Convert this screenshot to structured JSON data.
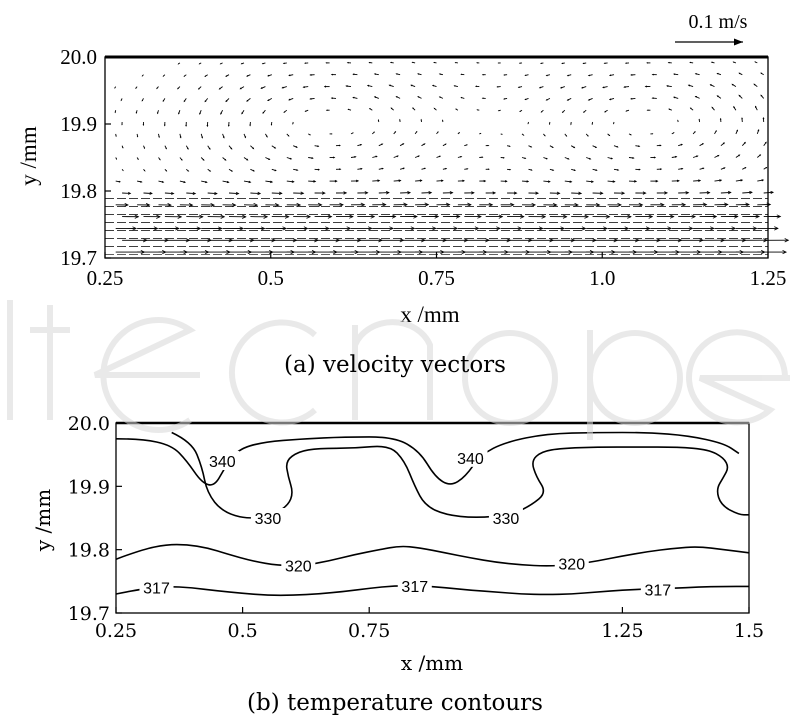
{
  "chart_data": [
    {
      "type": "vector",
      "caption": "(a) velocity vectors",
      "xlabel": "x /mm",
      "ylabel": "y /mm",
      "xlim": [
        0.25,
        1.25
      ],
      "ylim": [
        19.7,
        20.0
      ],
      "xticks": [
        "0.25",
        "0.5",
        "0.75",
        "1.0",
        "1.25"
      ],
      "yticks": [
        "19.7",
        "19.8",
        "19.9",
        "20.0"
      ],
      "reference_vector": {
        "label": "0.1 m/s",
        "magnitude": 0.1
      },
      "vortex_centers": [
        {
          "x": 0.58,
          "y": 19.9
        },
        {
          "x": 1.08,
          "y": 19.9
        }
      ],
      "near_wall_flow": "predominantly +x below y = 19.8"
    },
    {
      "type": "contour",
      "caption": "(b) temperature contours",
      "xlabel": "x /mm",
      "ylabel": "y /mm",
      "xlim": [
        0.25,
        1.5
      ],
      "ylim": [
        19.7,
        20.0
      ],
      "xticks": [
        "0.25",
        "0.5",
        "0.75",
        "1.25",
        "1.5"
      ],
      "yticks": [
        "19.7",
        "19.8",
        "19.9",
        "20.0"
      ],
      "contours": [
        {
          "level": "340",
          "points": [
            [
              0.25,
              19.975
            ],
            [
              0.3,
              19.975
            ],
            [
              0.36,
              19.965
            ],
            [
              0.39,
              19.94
            ],
            [
              0.42,
              19.905
            ],
            [
              0.445,
              19.9
            ],
            [
              0.465,
              19.93
            ],
            [
              0.49,
              19.958
            ],
            [
              0.54,
              19.97
            ],
            [
              0.62,
              19.975
            ],
            [
              0.7,
              19.978
            ],
            [
              0.8,
              19.978
            ],
            [
              0.85,
              19.955
            ],
            [
              0.88,
              19.915
            ],
            [
              0.91,
              19.9
            ],
            [
              0.94,
              19.915
            ],
            [
              0.97,
              19.95
            ],
            [
              1.02,
              19.97
            ],
            [
              1.1,
              19.983
            ],
            [
              1.2,
              19.985
            ],
            [
              1.3,
              19.985
            ],
            [
              1.38,
              19.98
            ],
            [
              1.45,
              19.968
            ],
            [
              1.48,
              19.952
            ]
          ],
          "labels": [
            {
              "x": 0.46,
              "y": 19.94
            },
            {
              "x": 0.95,
              "y": 19.945
            }
          ]
        },
        {
          "level": "330",
          "points": [
            [
              0.36,
              19.985
            ],
            [
              0.4,
              19.97
            ],
            [
              0.42,
              19.93
            ],
            [
              0.43,
              19.89
            ],
            [
              0.46,
              19.86
            ],
            [
              0.51,
              19.848
            ],
            [
              0.56,
              19.855
            ],
            [
              0.59,
              19.87
            ],
            [
              0.6,
              19.89
            ],
            [
              0.59,
              19.915
            ],
            [
              0.585,
              19.94
            ],
            [
              0.61,
              19.955
            ],
            [
              0.65,
              19.96
            ],
            [
              0.72,
              19.96
            ],
            [
              0.79,
              19.965
            ],
            [
              0.82,
              19.94
            ],
            [
              0.84,
              19.9
            ],
            [
              0.86,
              19.87
            ],
            [
              0.9,
              19.855
            ],
            [
              0.96,
              19.85
            ],
            [
              1.03,
              19.855
            ],
            [
              1.07,
              19.87
            ],
            [
              1.1,
              19.89
            ],
            [
              1.08,
              19.915
            ],
            [
              1.07,
              19.94
            ],
            [
              1.09,
              19.955
            ],
            [
              1.13,
              19.96
            ],
            [
              1.2,
              19.962
            ],
            [
              1.28,
              19.962
            ],
            [
              1.36,
              19.962
            ],
            [
              1.42,
              19.958
            ],
            [
              1.45,
              19.945
            ],
            [
              1.46,
              19.93
            ],
            [
              1.45,
              19.915
            ],
            [
              1.435,
              19.895
            ],
            [
              1.445,
              19.87
            ],
            [
              1.48,
              19.855
            ],
            [
              1.5,
              19.855
            ]
          ],
          "labels": [
            {
              "x": 0.55,
              "y": 19.85
            },
            {
              "x": 1.02,
              "y": 19.85
            }
          ]
        },
        {
          "level": "320",
          "points": [
            [
              0.25,
              19.785
            ],
            [
              0.3,
              19.8
            ],
            [
              0.35,
              19.808
            ],
            [
              0.39,
              19.808
            ],
            [
              0.43,
              19.803
            ],
            [
              0.47,
              19.793
            ],
            [
              0.52,
              19.782
            ],
            [
              0.57,
              19.775
            ],
            [
              0.62,
              19.775
            ],
            [
              0.67,
              19.782
            ],
            [
              0.72,
              19.792
            ],
            [
              0.77,
              19.8
            ],
            [
              0.81,
              19.806
            ],
            [
              0.85,
              19.803
            ],
            [
              0.9,
              19.795
            ],
            [
              0.95,
              19.787
            ],
            [
              1.0,
              19.78
            ],
            [
              1.05,
              19.776
            ],
            [
              1.1,
              19.774
            ],
            [
              1.15,
              19.776
            ],
            [
              1.2,
              19.782
            ],
            [
              1.25,
              19.79
            ],
            [
              1.3,
              19.797
            ],
            [
              1.35,
              19.802
            ],
            [
              1.4,
              19.805
            ],
            [
              1.45,
              19.8
            ],
            [
              1.5,
              19.795
            ]
          ],
          "labels": [
            {
              "x": 0.61,
              "y": 19.775
            },
            {
              "x": 1.15,
              "y": 19.778
            }
          ]
        },
        {
          "level": "317",
          "points": [
            [
              0.25,
              19.73
            ],
            [
              0.3,
              19.738
            ],
            [
              0.35,
              19.742
            ],
            [
              0.4,
              19.74
            ],
            [
              0.45,
              19.735
            ],
            [
              0.5,
              19.731
            ],
            [
              0.55,
              19.728
            ],
            [
              0.6,
              19.728
            ],
            [
              0.65,
              19.73
            ],
            [
              0.7,
              19.734
            ],
            [
              0.75,
              19.739
            ],
            [
              0.8,
              19.743
            ],
            [
              0.85,
              19.743
            ],
            [
              0.9,
              19.74
            ],
            [
              0.95,
              19.736
            ],
            [
              1.0,
              19.733
            ],
            [
              1.05,
              19.73
            ],
            [
              1.1,
              19.729
            ],
            [
              1.15,
              19.73
            ],
            [
              1.2,
              19.733
            ],
            [
              1.25,
              19.736
            ],
            [
              1.3,
              19.738
            ],
            [
              1.35,
              19.739
            ],
            [
              1.4,
              19.741
            ],
            [
              1.45,
              19.742
            ],
            [
              1.5,
              19.742
            ]
          ],
          "labels": [
            {
              "x": 0.33,
              "y": 19.74
            },
            {
              "x": 0.84,
              "y": 19.743
            },
            {
              "x": 1.32,
              "y": 19.737
            }
          ]
        }
      ]
    }
  ],
  "watermark": "IntechOpen"
}
